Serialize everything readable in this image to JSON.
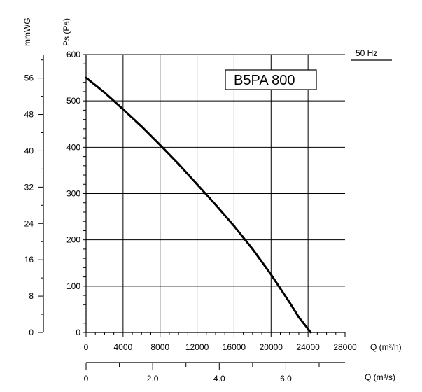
{
  "chart_data": {
    "type": "line",
    "title": "",
    "model_label": "B5PA 800",
    "frequency_label": "50 Hz",
    "xlabel": "Q (m³/h)",
    "ylabel": "Ps (Pa)",
    "y2label": "mmWG",
    "x2label": "Q (m³/s)",
    "xlim": [
      0,
      28000
    ],
    "ylim": [
      0,
      600
    ],
    "x_ticks": [
      "0",
      "4000",
      "8000",
      "12000",
      "16000",
      "20000",
      "24000",
      "28000"
    ],
    "y_ticks": [
      "0",
      "100",
      "200",
      "300",
      "400",
      "500",
      "600"
    ],
    "mmwg_ticks": [
      "0",
      "8",
      "16",
      "24",
      "32",
      "40",
      "48",
      "56"
    ],
    "m3s_ticks": [
      "0",
      "2.0",
      "4.0",
      "6.0"
    ],
    "grid": true,
    "series": [
      {
        "x": [
          0,
          2000,
          4000,
          6000,
          8000,
          10000,
          12000,
          14000,
          16000,
          18000,
          20000,
          22000,
          23000,
          24300
        ],
        "y": [
          550,
          518,
          482,
          445,
          405,
          364,
          320,
          276,
          230,
          180,
          125,
          65,
          33,
          0
        ]
      }
    ]
  }
}
